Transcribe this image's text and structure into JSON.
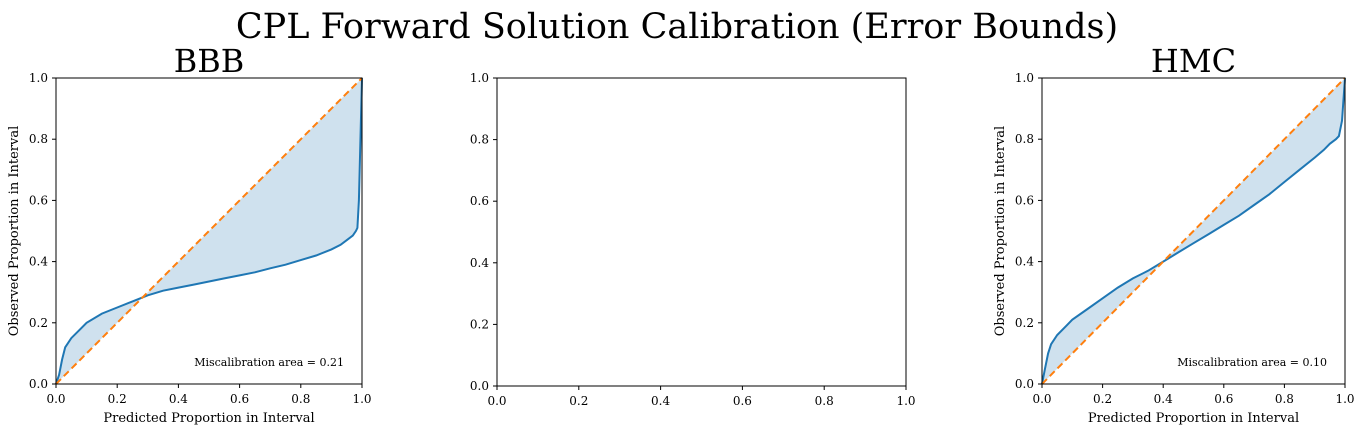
{
  "figure": {
    "suptitle": "CPL Forward Solution Calibration (Error Bounds)"
  },
  "chart_data": [
    {
      "type": "line",
      "title": "BBB",
      "xlabel": "Predicted Proportion in Interval",
      "ylabel": "Observed Proportion in Interval",
      "xlim": [
        0,
        1
      ],
      "ylim": [
        0,
        1
      ],
      "xticks": [
        "0.0",
        "0.2",
        "0.4",
        "0.6",
        "0.8",
        "1.0"
      ],
      "yticks": [
        "0.0",
        "0.2",
        "0.4",
        "0.6",
        "0.8",
        "1.0"
      ],
      "grid": false,
      "annotation": "Miscalibration area = 0.21",
      "fill_color": "#cfe1ee",
      "series": [
        {
          "role": "calibration-curve",
          "color": "#1f77b4",
          "x": [
            0.0,
            0.01,
            0.02,
            0.03,
            0.05,
            0.08,
            0.1,
            0.15,
            0.2,
            0.25,
            0.3,
            0.35,
            0.4,
            0.45,
            0.5,
            0.55,
            0.6,
            0.65,
            0.7,
            0.75,
            0.8,
            0.85,
            0.9,
            0.93,
            0.95,
            0.97,
            0.98,
            0.985,
            0.99,
            1.0
          ],
          "y": [
            0.0,
            0.03,
            0.08,
            0.12,
            0.15,
            0.18,
            0.2,
            0.23,
            0.25,
            0.27,
            0.29,
            0.305,
            0.315,
            0.325,
            0.335,
            0.345,
            0.355,
            0.365,
            0.378,
            0.39,
            0.405,
            0.42,
            0.44,
            0.455,
            0.47,
            0.485,
            0.5,
            0.51,
            0.6,
            1.0
          ]
        },
        {
          "role": "ideal",
          "color": "#ff7f0e",
          "dashed": true,
          "x": [
            0,
            1
          ],
          "y": [
            0,
            1
          ]
        }
      ]
    },
    {
      "type": "line",
      "title": "",
      "xlabel": "",
      "ylabel": "",
      "xlim": [
        0,
        1
      ],
      "ylim": [
        0,
        1
      ],
      "xticks": [
        "0.0",
        "0.2",
        "0.4",
        "0.6",
        "0.8",
        "1.0"
      ],
      "yticks": [
        "0.0",
        "0.2",
        "0.4",
        "0.6",
        "0.8",
        "1.0"
      ],
      "grid": false,
      "annotation": "",
      "series": []
    },
    {
      "type": "line",
      "title": "HMC",
      "xlabel": "Predicted Proportion in Interval",
      "ylabel": "Observed Proportion in Interval",
      "xlim": [
        0,
        1
      ],
      "ylim": [
        0,
        1
      ],
      "xticks": [
        "0.0",
        "0.2",
        "0.4",
        "0.6",
        "0.8",
        "1.0"
      ],
      "yticks": [
        "0.0",
        "0.2",
        "0.4",
        "0.6",
        "0.8",
        "1.0"
      ],
      "grid": false,
      "annotation": "Miscalibration area = 0.10",
      "fill_color": "#cfe1ee",
      "series": [
        {
          "role": "calibration-curve",
          "color": "#1f77b4",
          "x": [
            0.0,
            0.01,
            0.02,
            0.03,
            0.05,
            0.08,
            0.1,
            0.15,
            0.2,
            0.25,
            0.3,
            0.35,
            0.4,
            0.45,
            0.5,
            0.55,
            0.6,
            0.65,
            0.7,
            0.75,
            0.8,
            0.85,
            0.9,
            0.93,
            0.95,
            0.97,
            0.98,
            0.99,
            1.0
          ],
          "y": [
            0.0,
            0.05,
            0.1,
            0.13,
            0.16,
            0.19,
            0.21,
            0.245,
            0.28,
            0.315,
            0.345,
            0.37,
            0.4,
            0.43,
            0.46,
            0.49,
            0.52,
            0.55,
            0.585,
            0.62,
            0.66,
            0.7,
            0.74,
            0.765,
            0.785,
            0.8,
            0.81,
            0.86,
            1.0
          ]
        },
        {
          "role": "ideal",
          "color": "#ff7f0e",
          "dashed": true,
          "x": [
            0,
            1
          ],
          "y": [
            0,
            1
          ]
        }
      ]
    }
  ]
}
